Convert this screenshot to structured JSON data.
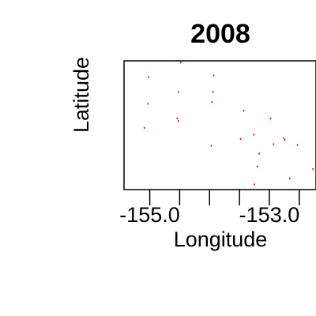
{
  "chart_data": {
    "type": "scatter",
    "title": "2008",
    "xlabel": "Longitude",
    "ylabel": "Latitude",
    "xlim": [
      -155.43,
      -152.22
    ],
    "ylim": [
      0,
      1
    ],
    "xticks": [
      -155.0,
      -154.5,
      -154.0,
      -153.5,
      -153.0,
      -152.5
    ],
    "xtick_labels": [
      "-155.0",
      "",
      "",
      "",
      "-153.0",
      ""
    ],
    "yticks": [],
    "grid": false,
    "legend": "none",
    "point_color": "#ff0000",
    "series": [
      {
        "points": [
          {
            "x": -154.48,
            "y": 0.987
          },
          {
            "x": -155.02,
            "y": 0.873
          },
          {
            "x": -153.93,
            "y": 0.887
          },
          {
            "x": -154.52,
            "y": 0.76
          },
          {
            "x": -153.94,
            "y": 0.76
          },
          {
            "x": -155.03,
            "y": 0.667
          },
          {
            "x": -153.96,
            "y": 0.68
          },
          {
            "x": -154.54,
            "y": 0.553
          },
          {
            "x": -154.52,
            "y": 0.533
          },
          {
            "x": -153.43,
            "y": 0.613
          },
          {
            "x": -152.98,
            "y": 0.553
          },
          {
            "x": -155.09,
            "y": 0.48
          },
          {
            "x": -153.48,
            "y": 0.393
          },
          {
            "x": -153.26,
            "y": 0.427
          },
          {
            "x": -152.76,
            "y": 0.4
          },
          {
            "x": -152.74,
            "y": 0.387
          },
          {
            "x": -153.97,
            "y": 0.34
          },
          {
            "x": -152.93,
            "y": 0.353
          },
          {
            "x": -152.53,
            "y": 0.347
          },
          {
            "x": -153.17,
            "y": 0.28
          },
          {
            "x": -153.2,
            "y": 0.18
          },
          {
            "x": -152.27,
            "y": 0.16
          },
          {
            "x": -152.66,
            "y": 0.087
          },
          {
            "x": -153.25,
            "y": 0.04
          }
        ]
      }
    ]
  }
}
